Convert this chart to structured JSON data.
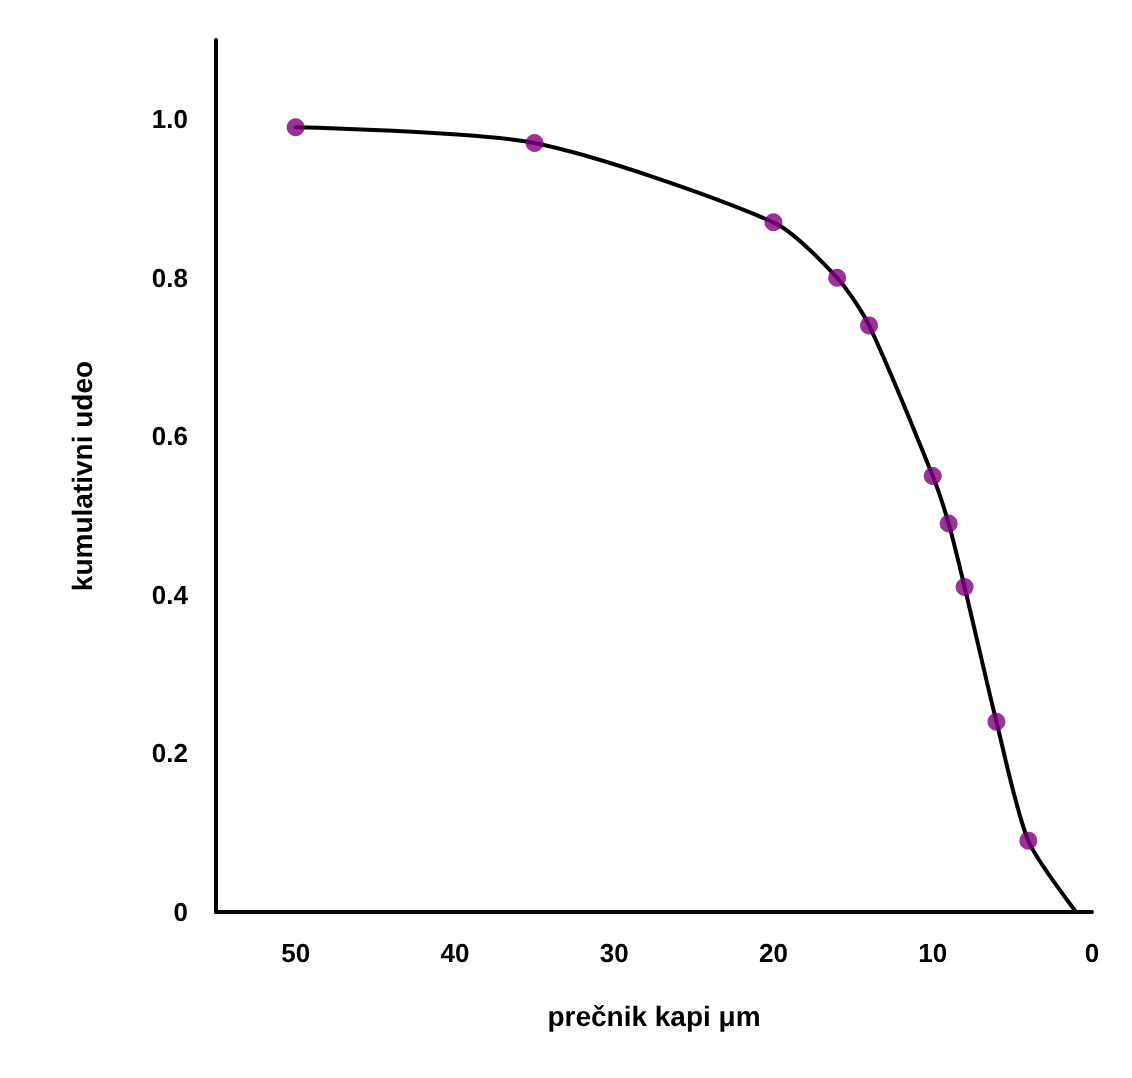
{
  "chart_data": {
    "type": "scatter",
    "xlabel": "prečnik kapi μm",
    "ylabel": "kumulativni udeo",
    "xlim": [
      55,
      0
    ],
    "xticks": [
      50,
      40,
      30,
      20,
      10,
      0
    ],
    "ylim": [
      0,
      1.1
    ],
    "yticks": [
      0,
      0.2,
      0.4,
      0.6,
      0.8,
      {
        "value": 1,
        "label": "1.0"
      }
    ],
    "grid": false,
    "line_style": "solid",
    "series": [
      {
        "type": "line",
        "marker": "none",
        "color": "#000000",
        "x": [
          50,
          35,
          20,
          16,
          14,
          10,
          9,
          8,
          6,
          4,
          1
        ],
        "values": [
          0.99,
          0.97,
          0.87,
          0.8,
          0.74,
          0.55,
          0.49,
          0.41,
          0.24,
          0.09,
          0
        ]
      },
      {
        "marker": "circle",
        "color": "#800080",
        "x": [
          50,
          35,
          20,
          16,
          14,
          10,
          9,
          8,
          6,
          4
        ],
        "values": [
          0.99,
          0.97,
          0.87,
          0.8,
          0.74,
          0.55,
          0.49,
          0.41,
          0.24,
          0.09
        ]
      }
    ]
  }
}
